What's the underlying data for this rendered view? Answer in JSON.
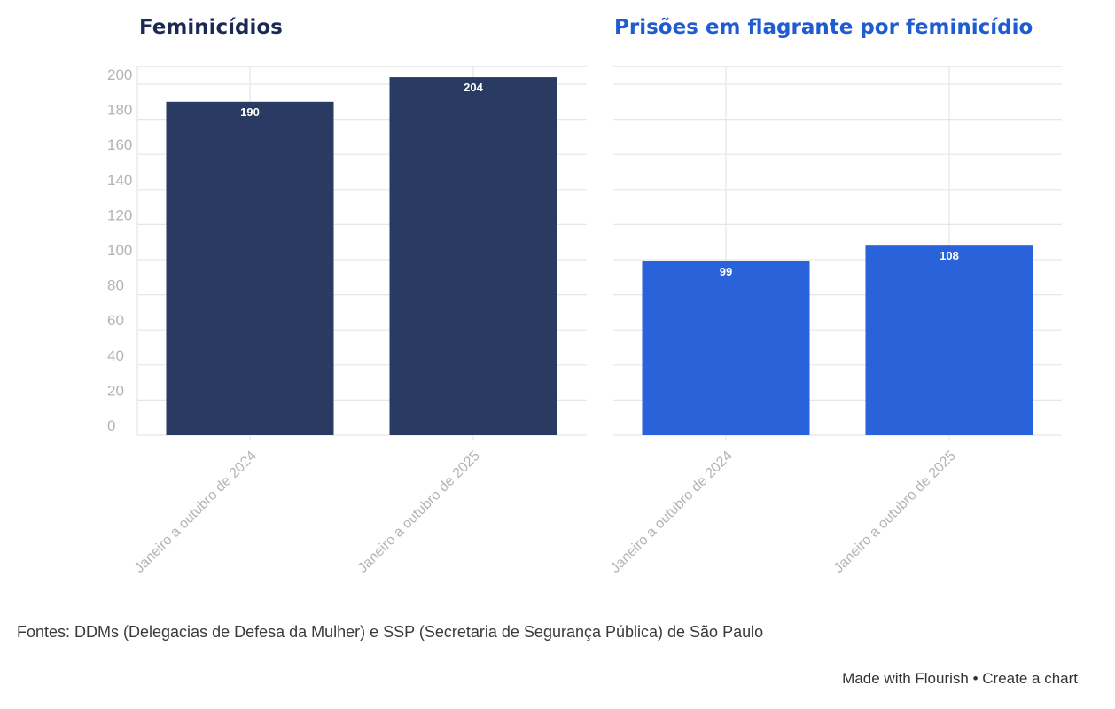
{
  "colors": {
    "series_left": "#293b62",
    "series_right": "#2962d9",
    "title_left": "#1a2a52",
    "title_right": "#1f5bd1",
    "grid": "#e6e6e6",
    "tick": "#b3b3b3"
  },
  "chart_data": [
    {
      "type": "bar",
      "title": "Feminicídios",
      "categories": [
        "Janeiro a outubro de 2024",
        "Janeiro a outubro de 2025"
      ],
      "values": [
        190,
        204
      ],
      "yticks": [
        "0",
        "20",
        "40",
        "60",
        "80",
        "100",
        "120",
        "140",
        "160",
        "180",
        "200"
      ],
      "ylim": [
        0,
        210
      ],
      "grid": true
    },
    {
      "type": "bar",
      "title": "Prisões em flagrante por feminicídio",
      "categories": [
        "Janeiro a outubro de 2024",
        "Janeiro a outubro de 2025"
      ],
      "values": [
        99,
        108
      ],
      "ylim": [
        0,
        210
      ],
      "grid": true
    }
  ],
  "footer": {
    "source": "Fontes: DDMs (Delegacias de Defesa da Mulher) e SSP (Secretaria de Segurança Pública) de São Paulo",
    "made_with": "Made with Flourish",
    "separator": "•",
    "create_chart": "Create a chart"
  }
}
